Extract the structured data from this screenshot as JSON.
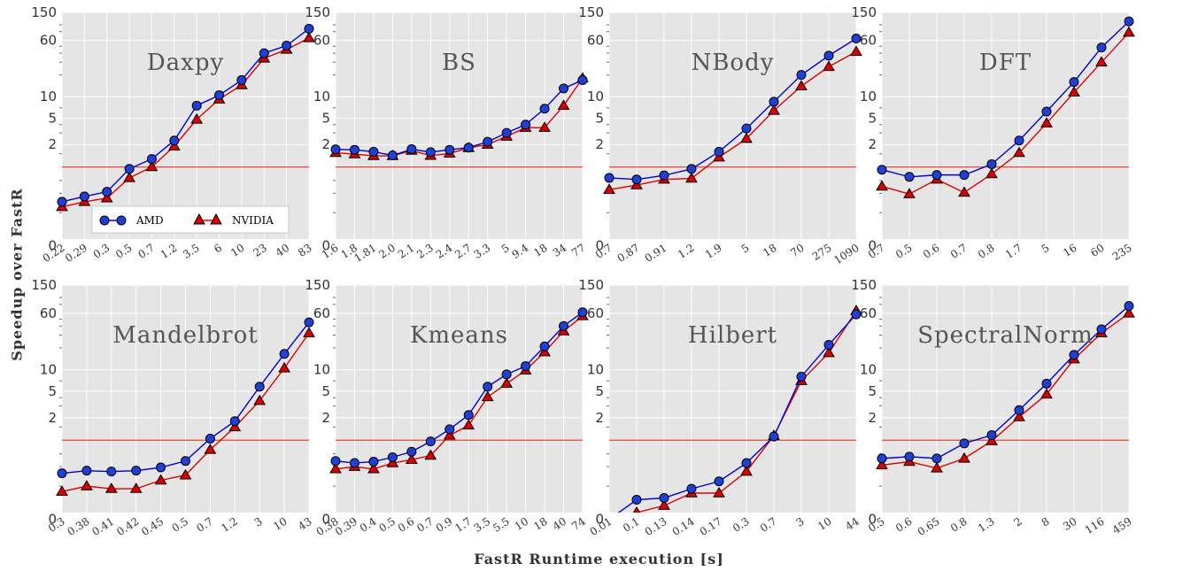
{
  "figure": {
    "ylabel": "Speedup over FastR",
    "xlabel": "FastR Runtime execution [s]",
    "legend": {
      "items": [
        {
          "name": "AMD",
          "marker": "circle",
          "color": "#0000cc"
        },
        {
          "name": "NVIDIA",
          "marker": "triangle",
          "color": "#cc0000"
        }
      ]
    },
    "yticks": [
      "0",
      "2",
      "5",
      "10",
      "60",
      "150"
    ],
    "colors": {
      "panel_bg": "#e5e5e5",
      "grid": "#ffffff",
      "amd": "#0000cc",
      "amd_fill": "#1f3fd6",
      "nvidia": "#dd0000",
      "nvidia_fill": "#dd0000",
      "baseline": "#e24a33"
    }
  },
  "chart_data": [
    {
      "type": "line",
      "title": "Daxpy",
      "yscale": "log",
      "ylim": [
        0,
        150
      ],
      "baseline": 1,
      "x": [
        "0.22",
        "0.29",
        "0.3",
        "0.5",
        "0.7",
        "1.2",
        "3.5",
        "6",
        "10",
        "23",
        "40",
        "83"
      ],
      "series": [
        {
          "name": "AMD",
          "values": [
            0.4,
            0.46,
            0.52,
            0.95,
            1.28,
            2.3,
            7.5,
            10.5,
            17,
            40,
            51,
            88
          ]
        },
        {
          "name": "NVIDIA",
          "values": [
            0.35,
            0.4,
            0.44,
            0.75,
            1.0,
            1.9,
            4.8,
            9.2,
            14.5,
            34,
            45,
            65
          ]
        }
      ]
    },
    {
      "type": "line",
      "title": "BS",
      "yscale": "log",
      "ylim": [
        0,
        150
      ],
      "baseline": 1,
      "x": [
        "1.6",
        "1.8",
        "1.81",
        "2.0",
        "2.1",
        "2.3",
        "2.4",
        "2.7",
        "3.3",
        "5",
        "9.4",
        "18",
        "34",
        "77"
      ],
      "series": [
        {
          "name": "AMD",
          "values": [
            1.72,
            1.7,
            1.6,
            1.43,
            1.73,
            1.58,
            1.7,
            1.82,
            2.2,
            3.0,
            4.0,
            6.8,
            13,
            17
          ]
        },
        {
          "name": "NVIDIA",
          "values": [
            1.55,
            1.49,
            1.41,
            1.41,
            1.66,
            1.42,
            1.52,
            1.8,
            2.0,
            2.65,
            3.6,
            3.6,
            7.5,
            18
          ]
        }
      ]
    },
    {
      "type": "line",
      "title": "NBody",
      "yscale": "log",
      "ylim": [
        0,
        150
      ],
      "baseline": 1,
      "x": [
        "0.7",
        "0.87",
        "0.91",
        "1.2",
        "1.9",
        "5",
        "18",
        "70",
        "275",
        "1090"
      ],
      "series": [
        {
          "name": "AMD",
          "values": [
            0.75,
            0.72,
            0.8,
            0.95,
            1.6,
            3.5,
            8.5,
            20,
            37,
            64
          ]
        },
        {
          "name": "NVIDIA",
          "values": [
            0.55,
            0.62,
            0.72,
            0.74,
            1.35,
            2.45,
            6.4,
            14,
            26,
            42
          ]
        }
      ]
    },
    {
      "type": "line",
      "title": "DFT",
      "yscale": "log",
      "ylim": [
        0,
        150
      ],
      "baseline": 1,
      "x": [
        "0.7",
        "0.5",
        "0.6",
        "0.7",
        "0.8",
        "1.7",
        "5",
        "16",
        "60",
        "235"
      ],
      "series": [
        {
          "name": "AMD",
          "values": [
            0.93,
            0.77,
            0.81,
            0.81,
            1.09,
            2.3,
            6.2,
            16,
            48,
            112
          ]
        },
        {
          "name": "NVIDIA",
          "values": [
            0.6,
            0.49,
            0.72,
            0.51,
            0.83,
            1.55,
            4.2,
            11.5,
            30,
            78
          ]
        }
      ]
    },
    {
      "type": "line",
      "title": "Mandelbrot",
      "yscale": "log",
      "ylim": [
        0,
        150
      ],
      "baseline": 1,
      "x": [
        "0.3",
        "0.38",
        "0.41",
        "0.42",
        "0.45",
        "0.5",
        "0.7",
        "1.2",
        "3",
        "10",
        "43"
      ],
      "series": [
        {
          "name": "AMD",
          "values": [
            0.42,
            0.45,
            0.44,
            0.45,
            0.49,
            0.58,
            1.05,
            1.8,
            5.8,
            16.5,
            45
          ]
        },
        {
          "name": "NVIDIA",
          "values": [
            0.26,
            0.3,
            0.28,
            0.28,
            0.35,
            0.4,
            0.78,
            1.5,
            3.6,
            10.5,
            32
          ]
        }
      ]
    },
    {
      "type": "line",
      "title": "Kmeans",
      "yscale": "log",
      "ylim": [
        0,
        150
      ],
      "baseline": 1,
      "x": [
        "0.38",
        "0.39",
        "0.4",
        "0.5",
        "0.6",
        "0.7",
        "0.9",
        "1.7",
        "3.5",
        "5.5",
        "10",
        "18",
        "40",
        "74"
      ],
      "series": [
        {
          "name": "AMD",
          "values": [
            0.58,
            0.55,
            0.57,
            0.64,
            0.74,
            0.97,
            1.4,
            2.2,
            5.8,
            8.6,
            11.2,
            21,
            40,
            62
          ]
        },
        {
          "name": "NVIDIA",
          "values": [
            0.47,
            0.5,
            0.47,
            0.55,
            0.6,
            0.67,
            1.16,
            1.58,
            4.1,
            6.4,
            9.8,
            17.5,
            34,
            55
          ]
        }
      ]
    },
    {
      "type": "line",
      "title": "Hilbert",
      "yscale": "log",
      "ylim": [
        0,
        150
      ],
      "baseline": 1,
      "x": [
        "0.01",
        "0.1",
        "0.13",
        "0.14",
        "0.17",
        "0.3",
        "0.7",
        "3",
        "10",
        "44"
      ],
      "series": [
        {
          "name": "AMD",
          "values": [
            0.0,
            0.21,
            0.22,
            0.28,
            0.34,
            0.55,
            1.12,
            8.0,
            22,
            58
          ]
        },
        {
          "name": "NVIDIA",
          "values": [
            0.0,
            0.14,
            0.18,
            0.25,
            0.25,
            0.44,
            1.15,
            7.0,
            17,
            65
          ]
        }
      ]
    },
    {
      "type": "line",
      "title": "SpectralNorm",
      "yscale": "log",
      "ylim": [
        0,
        150
      ],
      "baseline": 1,
      "x": [
        "0.5",
        "0.6",
        "0.65",
        "0.8",
        "1.3",
        "2",
        "8",
        "30",
        "116",
        "459"
      ],
      "series": [
        {
          "name": "AMD",
          "values": [
            0.62,
            0.65,
            0.62,
            0.92,
            1.17,
            2.6,
            6.4,
            16,
            36,
            76
          ]
        },
        {
          "name": "NVIDIA",
          "values": [
            0.52,
            0.57,
            0.48,
            0.62,
            0.98,
            2.05,
            4.5,
            14,
            32,
            60
          ]
        }
      ]
    }
  ]
}
